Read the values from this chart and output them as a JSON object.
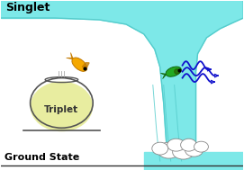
{
  "bg_color": "#ffffff",
  "singlet_label": "Singlet",
  "triplet_label": "Triplet",
  "ground_label": "Ground State",
  "water_color": "#7de8e8",
  "water_edge_color": "#55cccc",
  "singlet_band_color": "#7de8e8",
  "bowl_outline": "#555555",
  "bowl_water_color": "#e8eda0",
  "bowl_rim_color": "#aaaaaa",
  "fish_gold_body": "#f5a800",
  "fish_gold_dark": "#c07800",
  "fish_green_body": "#22aa22",
  "fish_green_dark": "#116611",
  "wave_color": "#1111cc",
  "foam_color": "#ffffff",
  "foam_outline": "#888888",
  "ground_line_color": "#333333",
  "label_color": "#000000",
  "flow_line_color": "#55b8b8"
}
